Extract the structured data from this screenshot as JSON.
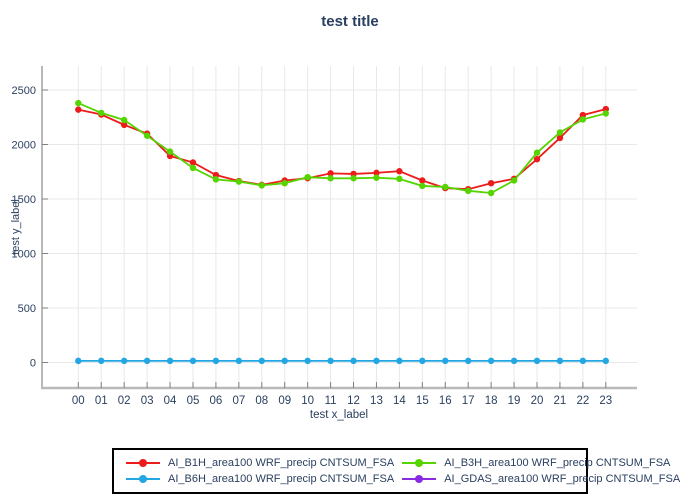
{
  "title": "test title",
  "axes": {
    "x_label": "test x_label",
    "y_label": "test y_label"
  },
  "chart_data": {
    "type": "line",
    "title": "test title",
    "xlabel": "test x_label",
    "ylabel": "test y_label",
    "categories": [
      "00",
      "01",
      "02",
      "03",
      "04",
      "05",
      "06",
      "07",
      "08",
      "09",
      "10",
      "11",
      "12",
      "13",
      "14",
      "15",
      "16",
      "17",
      "18",
      "19",
      "20",
      "21",
      "22",
      "23"
    ],
    "yticks": [
      0,
      500,
      1000,
      1500,
      2000,
      2500
    ],
    "ylim": [
      -240,
      2720
    ],
    "grid": true,
    "legend_position": "bottom-center",
    "marker": "circle",
    "series": [
      {
        "name": "AI_B1H_area100 WRF_precip CNTSUM_FSA",
        "color": "#ed1c1c",
        "values": [
          2320,
          2275,
          2180,
          2100,
          1895,
          1835,
          1720,
          1665,
          1630,
          1670,
          1690,
          1735,
          1730,
          1740,
          1755,
          1670,
          1600,
          1590,
          1645,
          1685,
          1865,
          2060,
          2270,
          2325
        ]
      },
      {
        "name": "AI_B3H_area100 WRF_precip CNTSUM_FSA",
        "color": "#55d400",
        "values": [
          2380,
          2290,
          2225,
          2080,
          1935,
          1785,
          1680,
          1660,
          1625,
          1645,
          1700,
          1690,
          1690,
          1695,
          1685,
          1620,
          1610,
          1575,
          1555,
          1670,
          1925,
          2110,
          2230,
          2285
        ]
      },
      {
        "name": "AI_B6H_area100 WRF_precip CNTSUM_FSA",
        "color": "#22a7e2",
        "values": [
          15,
          15,
          15,
          15,
          15,
          15,
          15,
          15,
          15,
          15,
          15,
          15,
          15,
          15,
          15,
          15,
          15,
          15,
          15,
          15,
          15,
          15,
          15,
          15
        ]
      },
      {
        "name": "AI_GDAS_area100 WRF_precip CNTSUM_FSA",
        "color": "#8a2be2",
        "values": []
      }
    ]
  },
  "colors": {
    "text": "#2a3f5f",
    "grid": "#e8e8e8",
    "left_spine": "#9b9b9b",
    "bottom_spine": "#b9b9b9",
    "tick": "#7f7f7f",
    "legend_border": "#000000",
    "background": "#ffffff"
  }
}
